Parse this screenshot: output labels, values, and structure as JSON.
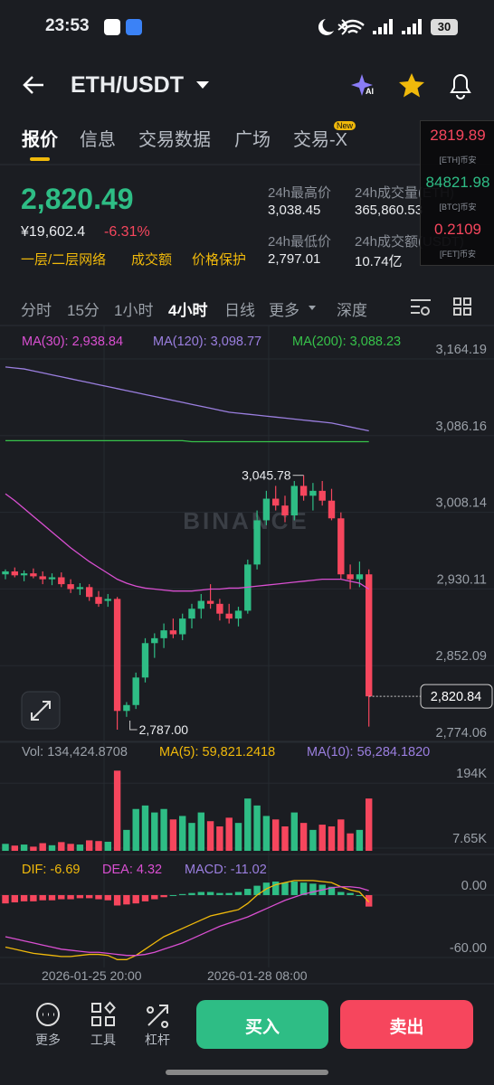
{
  "status_bar": {
    "time": "23:53",
    "battery": "30"
  },
  "header": {
    "pair": "ETH/USDT"
  },
  "tabs": [
    "报价",
    "信息",
    "交易数据",
    "广场",
    "交易-X"
  ],
  "tab_badge": "New",
  "price": {
    "last": "2,820.49",
    "cny": "¥19,602.4",
    "change": "-6.31%",
    "tags": [
      "一层/二层网络",
      "成交额",
      "价格保护"
    ]
  },
  "stats": [
    {
      "label": "24h最高价",
      "value": "3,038.45"
    },
    {
      "label": "24h成交量(ETH)",
      "value": "365,860.53"
    },
    {
      "label": "24h最低价",
      "value": "2,797.01"
    },
    {
      "label": "24h成交额(USDT)",
      "value": "10.74亿"
    }
  ],
  "float_widget": [
    {
      "price": "2819.89",
      "name": "[ETH]币安"
    },
    {
      "price": "84821.98",
      "name": "[BTC]币安"
    },
    {
      "price": "0.2109",
      "name": "[FET]币安"
    }
  ],
  "intervals": [
    "分时",
    "15分",
    "1小时",
    "4小时",
    "日线",
    "更多",
    "深度"
  ],
  "chart_data": {
    "type": "candlestick",
    "watermark": "BINANCE",
    "ylim": [
      2765.78,
      3170.63
    ],
    "yticks": [
      {
        "value": 3164.19,
        "label": "3,164.19"
      },
      {
        "value": 3086.16,
        "label": "3,086.16"
      },
      {
        "value": 3008.14,
        "label": "3,008.14"
      },
      {
        "value": 2930.11,
        "label": "2,930.11"
      },
      {
        "value": 2852.09,
        "label": "2,852.09"
      },
      {
        "value": 2774.06,
        "label": "2,774.06"
      }
    ],
    "open": [
      2945,
      2948,
      2944,
      2946,
      2943,
      2940,
      2942,
      2935,
      2930,
      2932,
      2922,
      2918,
      2920,
      2806,
      2812,
      2840,
      2875,
      2880,
      2888,
      2884,
      2900,
      2910,
      2918,
      2915,
      2905,
      2900,
      2908,
      2955,
      3000,
      3022,
      3015,
      3005,
      3035,
      3025,
      3030,
      3020,
      3002,
      2945,
      2940,
      2945
    ],
    "high": [
      2950,
      2952,
      2949,
      2951,
      2948,
      2946,
      2947,
      2940,
      2936,
      2935,
      2928,
      2925,
      2922,
      2815,
      2845,
      2880,
      2885,
      2895,
      2900,
      2905,
      2915,
      2925,
      2935,
      2920,
      2915,
      2912,
      2960,
      3010,
      3030,
      3035,
      3025,
      3040,
      3045.78,
      3038,
      3040,
      3032,
      3008,
      2955,
      2958,
      2950
    ],
    "low": [
      2940,
      2942,
      2938,
      2941,
      2935,
      2934,
      2932,
      2926,
      2924,
      2918,
      2912,
      2912,
      2787,
      2800,
      2808,
      2835,
      2860,
      2870,
      2880,
      2878,
      2890,
      2900,
      2910,
      2898,
      2895,
      2892,
      2905,
      2950,
      2995,
      3010,
      2998,
      3000,
      3020,
      3010,
      3015,
      3000,
      2940,
      2930,
      2932,
      2790
    ],
    "close": [
      2948,
      2944,
      2946,
      2943,
      2940,
      2942,
      2935,
      2930,
      2932,
      2922,
      2915,
      2920,
      2806,
      2812,
      2840,
      2875,
      2880,
      2888,
      2884,
      2900,
      2910,
      2918,
      2915,
      2905,
      2900,
      2908,
      2955,
      3000,
      3022,
      3015,
      3005,
      3035,
      3025,
      3030,
      3020,
      3002,
      2945,
      2940,
      2945,
      2820.84
    ],
    "high_label": "3,045.78",
    "low_label": "2,787.00",
    "last_label": "2,820.84",
    "ma_series": [
      {
        "name": "MA(30): 2,938.84",
        "color": "#d94fd1",
        "values": [
          3027,
          3020,
          3012,
          3004,
          2996,
          2988,
          2980,
          2972,
          2965,
          2958,
          2952,
          2946,
          2940,
          2936,
          2933,
          2931,
          2930,
          2929,
          2928,
          2928,
          2928,
          2929,
          2930,
          2930,
          2931,
          2931,
          2932,
          2933,
          2934,
          2935,
          2936,
          2937,
          2938,
          2939,
          2940,
          2940,
          2940,
          2938,
          2936,
          2930
        ]
      },
      {
        "name": "MA(120): 3,098.77",
        "color": "#9b7fe0",
        "values": [
          3156,
          3155,
          3154,
          3152,
          3150,
          3148,
          3146,
          3144,
          3142,
          3140,
          3138,
          3136,
          3134,
          3132,
          3130,
          3128,
          3126,
          3124,
          3122,
          3120,
          3118,
          3116,
          3114,
          3112,
          3110,
          3109,
          3108,
          3107,
          3106,
          3105,
          3104,
          3103,
          3102,
          3101,
          3100,
          3099,
          3097,
          3095,
          3093,
          3091
        ]
      },
      {
        "name": "MA(200): 3,088.23",
        "color": "#37c24a",
        "values": [
          3081,
          3081,
          3081,
          3081,
          3081,
          3081,
          3081,
          3081,
          3081,
          3081,
          3081,
          3081,
          3081,
          3081,
          3081,
          3081,
          3081,
          3081,
          3081,
          3081,
          3080,
          3080,
          3080,
          3080,
          3080,
          3080,
          3080,
          3080,
          3080,
          3080,
          3080,
          3080,
          3080,
          3080,
          3080,
          3080,
          3080,
          3080,
          3080,
          3080
        ]
      }
    ],
    "volume": {
      "legend": [
        "Vol: 134,424.8708",
        "MA(5): 59,821.2418",
        "MA(10): 56,284.1820"
      ],
      "ylim": [
        0,
        236000
      ],
      "yticks": [
        {
          "value": 194000,
          "label": "194K"
        },
        {
          "value": 7650,
          "label": "7.65K"
        }
      ],
      "values": [
        20000,
        15000,
        18000,
        12000,
        22000,
        16000,
        25000,
        20000,
        18000,
        30000,
        28000,
        26000,
        230000,
        60000,
        120000,
        130000,
        110000,
        120000,
        90000,
        100000,
        80000,
        110000,
        85000,
        70000,
        95000,
        80000,
        150000,
        130000,
        100000,
        90000,
        70000,
        110000,
        80000,
        60000,
        75000,
        70000,
        90000,
        50000,
        60000,
        150000
      ]
    },
    "macd": {
      "legend": [
        "DIF: -6.69",
        "DEA: 4.32",
        "MACD: -11.02"
      ],
      "ylim": [
        -73.9,
        21.7
      ],
      "yticks": [
        {
          "value": 0,
          "label": "0.00"
        },
        {
          "value": -60,
          "label": "-60.00"
        }
      ],
      "hist": [
        -8,
        -7,
        -6,
        -6,
        -5,
        -5,
        -4,
        -4,
        -3,
        -3,
        -4,
        -5,
        -10,
        -9,
        -8,
        -6,
        -4,
        -2,
        0,
        1,
        2,
        3,
        3,
        2,
        2,
        3,
        6,
        9,
        12,
        13,
        12,
        13,
        12,
        11,
        10,
        8,
        3,
        2,
        0,
        -11.02
      ],
      "dif": [
        -50,
        -52,
        -54,
        -56,
        -57,
        -58,
        -59,
        -59,
        -58,
        -57,
        -57,
        -58,
        -62,
        -62,
        -58,
        -52,
        -46,
        -40,
        -36,
        -32,
        -28,
        -24,
        -20,
        -18,
        -16,
        -14,
        -8,
        0,
        6,
        10,
        12,
        14,
        14,
        14,
        13,
        12,
        8,
        5,
        3,
        -6.69
      ],
      "dea": [
        -40,
        -42,
        -44,
        -46,
        -48,
        -50,
        -52,
        -53,
        -54,
        -55,
        -55,
        -56,
        -57,
        -58,
        -58,
        -57,
        -55,
        -52,
        -49,
        -46,
        -42,
        -38,
        -34,
        -30,
        -27,
        -24,
        -21,
        -17,
        -13,
        -9,
        -5,
        -2,
        1,
        3,
        5,
        7,
        8,
        8,
        7,
        4.32
      ]
    },
    "date_labels": [
      "2026-01-25 20:00",
      "2026-01-28 08:00"
    ]
  },
  "bottom_bar": {
    "icons": [
      "更多",
      "工具",
      "杠杆"
    ],
    "buy": "买入",
    "sell": "卖出"
  }
}
